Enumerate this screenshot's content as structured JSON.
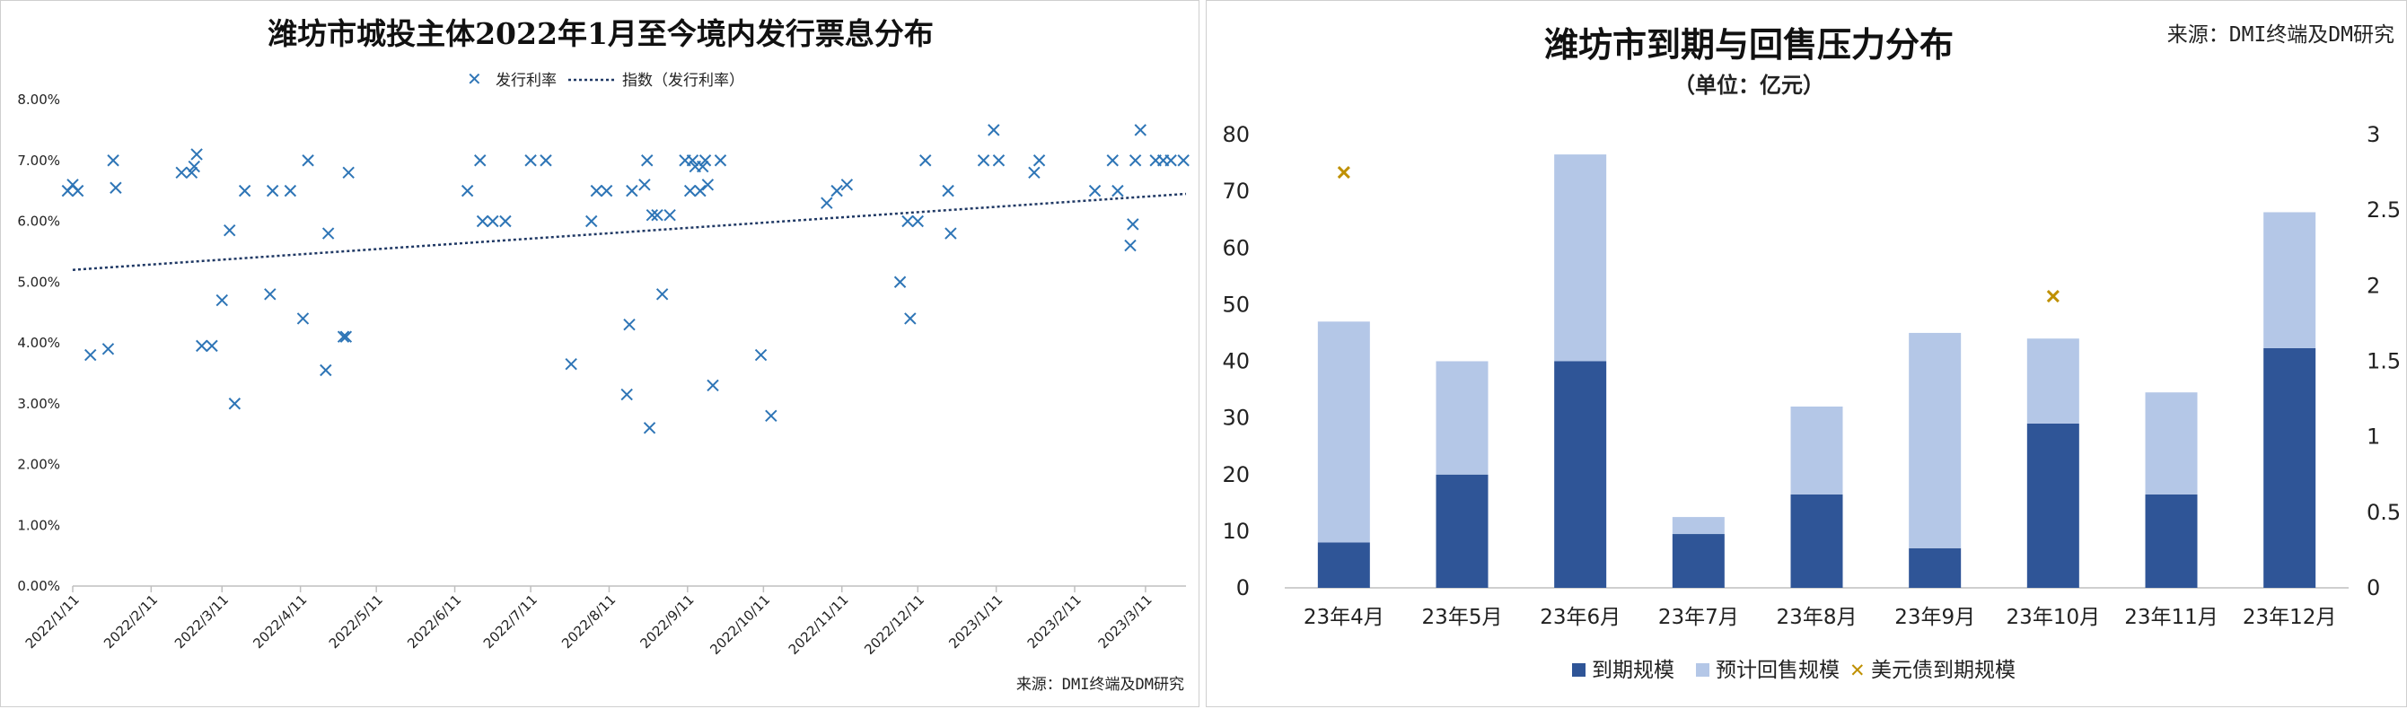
{
  "left": {
    "title": "潍坊市城投主体2022年1月至今境内发行票息分布",
    "source": "来源：DMI终端及DM研究",
    "legend": {
      "marker": "发行利率",
      "trend": "指数（发行利率）"
    },
    "chart_data": {
      "type": "scatter",
      "title": "潍坊市城投主体2022年1月至今境内发行票息分布",
      "x_ticks": [
        "2022/1/11",
        "2022/2/11",
        "2022/3/11",
        "2022/4/11",
        "2022/5/11",
        "2022/6/11",
        "2022/7/11",
        "2022/8/11",
        "2022/9/11",
        "2022/10/11",
        "2022/11/11",
        "2022/12/11",
        "2023/1/11",
        "2023/2/11",
        "2023/3/11"
      ],
      "y_ticks": [
        "0.00%",
        "1.00%",
        "2.00%",
        "3.00%",
        "4.00%",
        "5.00%",
        "6.00%",
        "7.00%",
        "8.00%"
      ],
      "ylim": [
        0,
        8
      ],
      "xlim_days": [
        0,
        440
      ],
      "series": [
        {
          "name": "发行利率",
          "points": [
            [
              -2,
              6.5
            ],
            [
              0,
              6.6
            ],
            [
              2,
              6.5
            ],
            [
              7,
              3.8
            ],
            [
              14,
              3.9
            ],
            [
              16,
              7.0
            ],
            [
              17,
              6.55
            ],
            [
              43,
              6.8
            ],
            [
              47,
              6.8
            ],
            [
              48,
              6.9
            ],
            [
              49,
              7.1
            ],
            [
              51,
              3.95
            ],
            [
              55,
              3.95
            ],
            [
              59,
              4.7
            ],
            [
              62,
              5.85
            ],
            [
              64,
              3.0
            ],
            [
              68,
              6.5
            ],
            [
              78,
              4.8
            ],
            [
              79,
              6.5
            ],
            [
              86,
              6.5
            ],
            [
              91,
              4.4
            ],
            [
              93,
              7.0
            ],
            [
              100,
              3.55
            ],
            [
              101,
              5.8
            ],
            [
              107,
              4.1
            ],
            [
              108,
              4.1
            ],
            [
              109,
              6.8
            ],
            [
              156,
              6.5
            ],
            [
              161,
              7.0
            ],
            [
              162,
              6.0
            ],
            [
              166,
              6.0
            ],
            [
              171,
              6.0
            ],
            [
              181,
              7.0
            ],
            [
              187,
              7.0
            ],
            [
              197,
              3.65
            ],
            [
              205,
              6.0
            ],
            [
              207,
              6.5
            ],
            [
              211,
              6.5
            ],
            [
              219,
              3.15
            ],
            [
              220,
              4.3
            ],
            [
              221,
              6.5
            ],
            [
              226,
              6.6
            ],
            [
              227,
              7.0
            ],
            [
              228,
              2.6
            ],
            [
              229,
              6.1
            ],
            [
              231,
              6.1
            ],
            [
              233,
              4.8
            ],
            [
              236,
              6.1
            ],
            [
              242,
              7.0
            ],
            [
              244,
              6.5
            ],
            [
              245,
              7.0
            ],
            [
              246,
              6.9
            ],
            [
              248,
              6.5
            ],
            [
              249,
              6.9
            ],
            [
              250,
              7.0
            ],
            [
              251,
              6.6
            ],
            [
              253,
              3.3
            ],
            [
              256,
              7.0
            ],
            [
              272,
              3.8
            ],
            [
              276,
              2.8
            ],
            [
              298,
              6.3
            ],
            [
              302,
              6.5
            ],
            [
              306,
              6.6
            ],
            [
              327,
              5.0
            ],
            [
              330,
              6.0
            ],
            [
              331,
              4.4
            ],
            [
              334,
              6.0
            ],
            [
              337,
              7.0
            ],
            [
              346,
              6.5
            ],
            [
              347,
              5.8
            ],
            [
              360,
              7.0
            ],
            [
              364,
              7.5
            ],
            [
              366,
              7.0
            ],
            [
              380,
              6.8
            ],
            [
              382,
              7.0
            ],
            [
              404,
              6.5
            ],
            [
              411,
              7.0
            ],
            [
              413,
              6.5
            ],
            [
              418,
              5.6
            ],
            [
              419,
              5.95
            ],
            [
              420,
              7.0
            ],
            [
              422,
              7.5
            ],
            [
              428,
              7.0
            ],
            [
              431,
              7.0
            ],
            [
              434,
              7.0
            ],
            [
              439,
              7.0
            ]
          ]
        },
        {
          "name": "指数（发行利率）",
          "type": "linear-trend",
          "x": [
            0,
            440
          ],
          "y": [
            5.2,
            6.45
          ]
        }
      ]
    }
  },
  "right": {
    "title": "潍坊市到期与回售压力分布",
    "subtitle": "（单位：亿元）",
    "source": "来源：DMI终端及DM研究",
    "legend": {
      "s1": "到期规模",
      "s2": "预计回售规模",
      "s3": "美元债到期规模"
    },
    "chart_data": {
      "type": "bar",
      "stacked": true,
      "title": "潍坊市到期与回售压力分布",
      "categories": [
        "23年4月",
        "23年5月",
        "23年6月",
        "23年7月",
        "23年8月",
        "23年9月",
        "23年10月",
        "23年11月",
        "23年12月"
      ],
      "ylim_left": [
        0,
        80
      ],
      "ylim_right": [
        0,
        3
      ],
      "y_ticks_left": [
        "0",
        "10",
        "20",
        "30",
        "40",
        "50",
        "60",
        "70",
        "80"
      ],
      "y_ticks_right": [
        "0",
        "0.5",
        "1",
        "1.5",
        "2",
        "2.5",
        "3"
      ],
      "series": [
        {
          "name": "到期规模",
          "axis": "left",
          "values": [
            8,
            20,
            40,
            9.5,
            16.5,
            7,
            29,
            16.5,
            42.3
          ],
          "color": "#2f5597"
        },
        {
          "name": "预计回售规模",
          "axis": "left",
          "values": [
            39,
            20,
            36.5,
            3,
            15.5,
            38,
            15,
            18,
            24
          ],
          "color": "#b4c7e7"
        },
        {
          "name": "美元债到期规模",
          "axis": "right",
          "points": [
            [
              0,
              2.75
            ],
            [
              6,
              1.93
            ]
          ],
          "color": "#bf9000"
        }
      ]
    }
  }
}
